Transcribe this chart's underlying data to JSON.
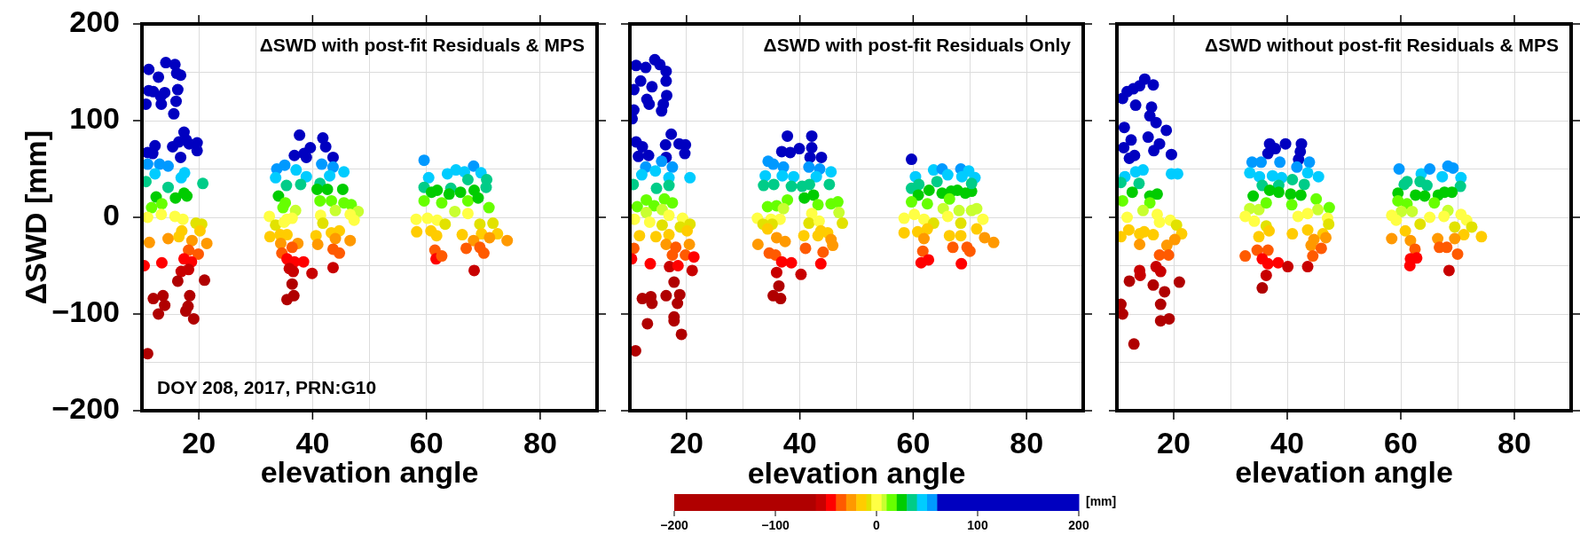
{
  "chart_data": [
    {
      "type": "scatter",
      "title": "ΔSWD with post-fit Residuals & MPS",
      "xlabel": "elevation angle",
      "ylabel": "ΔSWD [mm]",
      "annotations": [
        "DOY 208, 2017, PRN:G10"
      ],
      "marker": "circle",
      "grid": true,
      "xlim": [
        10,
        90
      ],
      "ylim": [
        -200,
        200
      ],
      "xticks": [
        20,
        {
          "value": 30,
          "label": null
        },
        40,
        {
          "value": 50,
          "label": null
        },
        60,
        {
          "value": 70,
          "label": null
        },
        80
      ],
      "yticks": [
        -200,
        {
          "value": -150,
          "label": null
        },
        -100,
        {
          "value": -50,
          "label": null
        },
        0,
        {
          "value": 50,
          "label": null
        },
        100,
        {
          "value": 150,
          "label": null
        },
        200
      ],
      "x": [
        11.2,
        12.9,
        14.2,
        16.1,
        15.8,
        16.3,
        11.2,
        12,
        14,
        13.3,
        10.7,
        13.4,
        16,
        15.6,
        16.8,
        11,
        12.3,
        11.9,
        17.4,
        16.5,
        15.4,
        16.8,
        18.3,
        19.7,
        19.7,
        17.8,
        11,
        13.1,
        14.6,
        12.3,
        16.9,
        17.5,
        10.7,
        14.6,
        20.7,
        17.4,
        17.9,
        12.5,
        13.5,
        15.9,
        11.7,
        11,
        13.4,
        15.8,
        17.2,
        19.5,
        20.5,
        11.3,
        14.6,
        16.5,
        17,
        18.8,
        20.2,
        21.4,
        18.2,
        19.9,
        13.5,
        17.4,
        18.7,
        16.9,
        18.2,
        10.4,
        16.3,
        21,
        12,
        13.7,
        14,
        12.9,
        18.4,
        17.7,
        18.1,
        19.1,
        11,
        37.7,
        36.8,
        38.5,
        39.6,
        41.8,
        42.3,
        43.6,
        38.9,
        33.7,
        35.1,
        37.1,
        38.9,
        41.6,
        43.6,
        43,
        45.5,
        33.5,
        35.4,
        37.9,
        41.3,
        40.8,
        42.6,
        45.3,
        34,
        35.2,
        34.8,
        37,
        41.3,
        43.3,
        45.5,
        46.8,
        48,
        44,
        32.4,
        35.5,
        36.4,
        33.5,
        35,
        41.4,
        41.8,
        46.6,
        47.3,
        32.5,
        34.3,
        35.5,
        40.6,
        43.3,
        44.7,
        44,
        46.6,
        34.4,
        37.4,
        40.9,
        36.4,
        34.6,
        43.6,
        44.7,
        35.5,
        36.8,
        38.4,
        35.9,
        36.6,
        39.9,
        43.6,
        36.4,
        36.7,
        35.5,
        59.6,
        60.4,
        68.3,
        65.2,
        63.7,
        66.7,
        69.6,
        59.6,
        60.9,
        61.9,
        64.3,
        67.3,
        70.6,
        70.5,
        64,
        66,
        68.4,
        67.3,
        59.6,
        62.7,
        69.1,
        71,
        58.2,
        60.2,
        61.9,
        65,
        67.3,
        69.4,
        71.7,
        63.3,
        58.3,
        60.8,
        61.8,
        66.3,
        69.7,
        72.5,
        74.2,
        68.3,
        71.1,
        61.5,
        67,
        69.4,
        70.1,
        61.7,
        62.7,
        68.4
      ],
      "values": [
        153,
        145,
        160,
        149,
        158,
        132,
        131,
        130,
        129,
        125,
        117,
        117,
        120,
        107,
        147,
        67,
        74,
        66,
        88,
        78,
        73,
        62,
        76,
        77,
        69,
        80,
        55,
        55,
        53,
        45,
        41,
        46,
        37,
        31,
        35,
        25,
        22,
        21,
        14,
        20,
        10,
        0,
        3,
        1,
        -2,
        -6,
        -7,
        -26,
        -22,
        -20,
        -14,
        -24,
        -14,
        -27,
        -34,
        -38,
        -47,
        -43,
        -46,
        -56,
        -54,
        -50,
        -66,
        -65,
        -84,
        -81,
        -91,
        -100,
        -81,
        -97,
        -92,
        -105,
        -141,
        85,
        64,
        66,
        72,
        82,
        73,
        62,
        62,
        50,
        54,
        49,
        42,
        55,
        52,
        43,
        47,
        41,
        33,
        34,
        35,
        29,
        29,
        29,
        22,
        15,
        10,
        7,
        17,
        17,
        15,
        13,
        6,
        7,
        1,
        -2,
        -1,
        -8,
        -5,
        2,
        -6,
        3,
        -3,
        -20,
        -18,
        -18,
        -19,
        -16,
        -14,
        -22,
        -24,
        -27,
        -27,
        -28,
        -31,
        -37,
        -33,
        -37,
        -43,
        -46,
        -46,
        -53,
        -56,
        -58,
        -52,
        -69,
        -81,
        -85,
        59,
        41,
        53,
        49,
        45,
        47,
        46,
        31,
        26,
        28,
        30,
        39,
        39,
        31,
        24,
        26,
        28,
        17,
        17,
        15,
        20,
        10,
        -2,
        -1,
        -3,
        6,
        4,
        -7,
        -6,
        -7,
        -15,
        -14,
        -19,
        -18,
        -17,
        -17,
        -24,
        -24,
        -21,
        -34,
        -32,
        -31,
        -37,
        -43,
        -40,
        -55
      ]
    },
    {
      "type": "scatter",
      "title": "ΔSWD with post-fit Residuals Only",
      "xlabel": "elevation angle",
      "marker": "circle",
      "grid": true,
      "tick_labels": "x",
      "xlim": [
        10,
        90
      ],
      "ylim": [
        -200,
        200
      ],
      "xticks": [
        20,
        {
          "value": 30,
          "label": null
        },
        40,
        {
          "value": 50,
          "label": null
        },
        60,
        {
          "value": 70,
          "label": null
        },
        80
      ],
      "yticks": [
        -200,
        {
          "value": -150,
          "label": null
        },
        -100,
        {
          "value": -50,
          "label": null
        },
        0,
        {
          "value": 50,
          "label": null
        },
        100,
        {
          "value": 150,
          "label": null
        },
        200
      ],
      "clim": [
        -200,
        200
      ],
      "cticks": [
        -200,
        -100,
        0,
        100,
        200
      ],
      "clabel": "[mm]",
      "x": [
        11.1,
        12.8,
        14.4,
        15.3,
        16.4,
        10.7,
        11.9,
        13.9,
        16.4,
        16.5,
        13,
        13.4,
        15.9,
        15.6,
        10.7,
        10.4,
        11.1,
        12.2,
        13.3,
        11.5,
        17.3,
        16.3,
        18.7,
        19.8,
        19.7,
        16.4,
        12.8,
        14.5,
        12.1,
        15.6,
        17.5,
        16.9,
        20.6,
        10.6,
        14.7,
        16.9,
        12.9,
        14.3,
        16.1,
        17.5,
        11.3,
        15.7,
        12.9,
        10.8,
        13.5,
        15.7,
        16.9,
        19.3,
        20.6,
        11.7,
        14.6,
        16.9,
        18.9,
        20.1,
        10.7,
        16.4,
        18.1,
        17.5,
        19.8,
        20.5,
        10.3,
        13.6,
        21.3,
        17,
        18.5,
        21,
        17.8,
        12.2,
        13.7,
        13.9,
        16.4,
        18.8,
        18.4,
        17.8,
        17.8,
        13.1,
        19.1,
        11,
        37.8,
        42.1,
        36.8,
        38.3,
        39.9,
        42.1,
        41.8,
        43.8,
        34.4,
        35.3,
        37.1,
        33.9,
        36.9,
        38.9,
        41.6,
        43.5,
        45.5,
        42.9,
        33.6,
        35.4,
        38.5,
        40.4,
        41.7,
        45.2,
        42.4,
        40.8,
        37.8,
        34.3,
        35.9,
        37.1,
        43.2,
        45.5,
        46.7,
        32.5,
        34.9,
        36.5,
        33.5,
        35.1,
        42.1,
        41.6,
        46.9,
        47.5,
        43.4,
        32.6,
        34.3,
        35.9,
        37.4,
        34.6,
        35.7,
        40.7,
        41,
        43.2,
        44.9,
        45.8,
        44.1,
        45.5,
        43.7,
        36.8,
        38.5,
        43.7,
        35.9,
        40.2,
        36.3,
        35.3,
        36.6,
        59.7,
        60.4,
        63.6,
        65.1,
        66.1,
        68.4,
        69.8,
        70.9,
        68.6,
        59.7,
        61,
        60.9,
        62.8,
        64.2,
        65.1,
        66.7,
        67.8,
        69.2,
        70.3,
        70.3,
        66.4,
        59.7,
        62.5,
        65.3,
        68.1,
        70.3,
        71.2,
        58.4,
        60.2,
        61.9,
        63.6,
        66.1,
        68.4,
        72.3,
        71.2,
        58.4,
        60.8,
        62.5,
        61.9,
        66.4,
        68.4,
        72.6,
        74.2,
        67,
        69.5,
        70,
        61.7,
        61.4,
        62.7,
        68.5
      ],
      "values": [
        157,
        155,
        163,
        158,
        151,
        132,
        141,
        135,
        141,
        126,
        122,
        117,
        117,
        110,
        111,
        102,
        78,
        73,
        64,
        63,
        86,
        75,
        76,
        75,
        66,
        62,
        52,
        48,
        44,
        58,
        52,
        41,
        41,
        34,
        30,
        33,
        18,
        12,
        19,
        15,
        11,
        8,
        5,
        -2,
        -5,
        -8,
        2,
        -1,
        -7,
        -19,
        -20,
        -18,
        -10,
        -14,
        -32,
        -28,
        -31,
        -39,
        -39,
        -28,
        -43,
        -48,
        -41,
        -51,
        -50,
        -55,
        -67,
        -84,
        -82,
        -89,
        -81,
        -80,
        -89,
        -103,
        -107,
        -110,
        -121,
        -138,
        84,
        84,
        68,
        67,
        71,
        72,
        62,
        62,
        58,
        55,
        52,
        43,
        43,
        42,
        52,
        50,
        47,
        42,
        33,
        34,
        32,
        32,
        34,
        34,
        23,
        20,
        18,
        11,
        12,
        9,
        13,
        14,
        16,
        -1,
        -2,
        -2,
        -7,
        -7,
        4,
        -6,
        5,
        -6,
        -4,
        -28,
        -12,
        -21,
        -25,
        -37,
        -39,
        -19,
        -32,
        -19,
        -16,
        -29,
        -36,
        -23,
        -14,
        -46,
        -47,
        -48,
        -57,
        -59,
        -71,
        -81,
        -84,
        60,
        42,
        49,
        50,
        44,
        50,
        48,
        41,
        42,
        30,
        34,
        23,
        28,
        37,
        25,
        27,
        28,
        25,
        27,
        35,
        19,
        16,
        14,
        9,
        7,
        7,
        9,
        -1,
        3,
        -2,
        -6,
        1,
        -6,
        -2,
        -12,
        -16,
        -15,
        -12,
        -22,
        -19,
        -19,
        -21,
        -26,
        -31,
        -31,
        -35,
        -35,
        -47,
        -44,
        -48
      ]
    },
    {
      "type": "scatter",
      "title": "ΔSWD without post-fit Residuals & MPS",
      "xlabel": "elevation angle",
      "marker": "circle",
      "grid": true,
      "tick_labels": "x",
      "xlim": [
        10,
        90
      ],
      "ylim": [
        -200,
        200
      ],
      "xticks": [
        20,
        {
          "value": 30,
          "label": null
        },
        40,
        {
          "value": 50,
          "label": null
        },
        60,
        {
          "value": 70,
          "label": null
        },
        80
      ],
      "yticks": [
        -200,
        {
          "value": -150,
          "label": null
        },
        -100,
        {
          "value": -50,
          "label": null
        },
        0,
        {
          "value": 50,
          "label": null
        },
        100,
        {
          "value": 150,
          "label": null
        },
        200
      ],
      "x": [
        11,
        11.8,
        12.9,
        14,
        14.9,
        16.4,
        13.3,
        16.1,
        15.8,
        16.9,
        18.7,
        11.3,
        12.5,
        15.5,
        17.5,
        16.5,
        11.2,
        13.1,
        12.2,
        19.6,
        11.4,
        13.3,
        14.6,
        19.6,
        20.7,
        10.7,
        13.9,
        12.7,
        15.8,
        17.1,
        11,
        15.8,
        14.6,
        11.8,
        17.1,
        19.4,
        20.5,
        17.5,
        12.1,
        14,
        16.4,
        14.8,
        10.7,
        14,
        21.4,
        20.2,
        18.8,
        17.5,
        19.1,
        16.9,
        17.7,
        14,
        14.1,
        12.2,
        16.4,
        21,
        18.4,
        17.7,
        10.7,
        11,
        17.7,
        19.2,
        13,
        36.9,
        37.9,
        39.7,
        42.5,
        42.3,
        36.6,
        33.8,
        35.4,
        38.7,
        42,
        41.7,
        43.9,
        33.4,
        35.1,
        37.4,
        39,
        43.6,
        45.5,
        35.6,
        38.5,
        40.9,
        43,
        34,
        36.9,
        38.5,
        40.6,
        42.4,
        45.1,
        47.4,
        33.4,
        35,
        36.3,
        40.8,
        45.4,
        32.6,
        34.2,
        36.3,
        41.9,
        43.6,
        47.1,
        47.3,
        35,
        36.8,
        40.9,
        43.6,
        46.3,
        44.7,
        44.2,
        46.8,
        34.7,
        36.6,
        46,
        32.6,
        35.6,
        36.6,
        38.4,
        44.5,
        40.1,
        43.6,
        36.3,
        35.6,
        59.7,
        63.6,
        65.1,
        67.3,
        68.3,
        69.2,
        70.6,
        60.6,
        61.1,
        63.4,
        64.6,
        70.5,
        62.6,
        64.2,
        66.6,
        67.7,
        69,
        59.5,
        59.5,
        61.1,
        65.9,
        68.3,
        60.1,
        62,
        58.4,
        59.2,
        65.1,
        67.6,
        70.6,
        71.6,
        63.4,
        69.5,
        72.5,
        71.1,
        58.4,
        60.8,
        61.7,
        62.5,
        66.5,
        69.5,
        66.8,
        68.1,
        70,
        74.2,
        61.7,
        62.8,
        61.6,
        68.5
      ],
      "values": [
        123,
        130,
        133,
        136,
        143,
        137,
        116,
        114,
        105,
        98,
        90,
        93,
        80,
        83,
        76,
        69,
        72,
        64,
        61,
        65,
        42,
        47,
        49,
        45,
        45,
        36,
        35,
        26,
        22,
        24,
        17,
        15,
        7,
        0,
        3,
        -3,
        -8,
        -5,
        -13,
        -17,
        -18,
        -15,
        -20,
        -28,
        -17,
        -23,
        -29,
        -39,
        -39,
        -51,
        -56,
        -55,
        -60,
        -66,
        -70,
        -67,
        -77,
        -90,
        -90,
        -100,
        -107,
        -105,
        -131,
        76,
        71,
        76,
        76,
        68,
        66,
        57,
        57,
        57,
        60,
        52,
        57,
        46,
        42,
        43,
        41,
        46,
        42,
        33,
        33,
        39,
        34,
        22,
        28,
        26,
        24,
        23,
        19,
        10,
        9,
        8,
        15,
        13,
        8,
        1,
        -4,
        -9,
        1,
        4,
        -1,
        -7,
        -20,
        -14,
        -17,
        -13,
        -17,
        -23,
        -29,
        -21,
        -34,
        -34,
        -32,
        -40,
        -43,
        -48,
        -47,
        -40,
        -51,
        -51,
        -60,
        -73,
        50,
        45,
        50,
        42,
        53,
        51,
        41,
        34,
        37,
        37,
        33,
        32,
        23,
        22,
        23,
        26,
        26,
        25,
        17,
        14,
        15,
        7,
        6,
        6,
        2,
        -3,
        0,
        1,
        3,
        -3,
        -7,
        -10,
        -10,
        -18,
        -22,
        -14,
        -24,
        -33,
        -22,
        -22,
        -31,
        -31,
        -38,
        -20,
        -43,
        -42,
        -50,
        -55
      ]
    }
  ]
}
